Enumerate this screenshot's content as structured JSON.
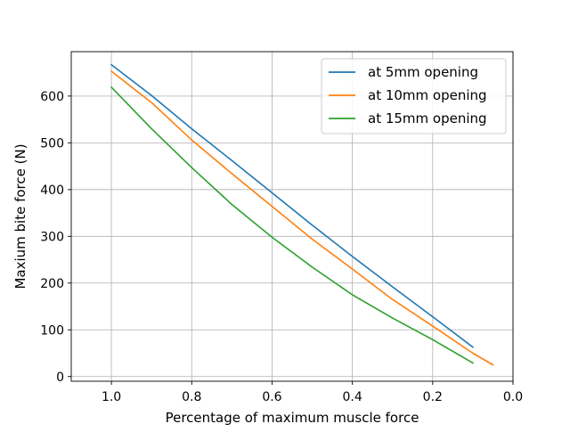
{
  "chart_data": {
    "type": "line",
    "xlabel": "Percentage of maximum muscle force",
    "ylabel": "Maxium bite force (N)",
    "xlim": [
      1.1,
      0.0
    ],
    "ylim": [
      -10,
      695
    ],
    "x_inverted": true,
    "grid": true,
    "legend_position": "top-right",
    "xticks": [
      1.0,
      0.8,
      0.6,
      0.4,
      0.2,
      0.0
    ],
    "xtick_labels": [
      "1.0",
      "0.8",
      "0.6",
      "0.4",
      "0.2",
      "0.0"
    ],
    "yticks": [
      0,
      100,
      200,
      300,
      400,
      500,
      600
    ],
    "ytick_labels": [
      "0",
      "100",
      "200",
      "300",
      "400",
      "500",
      "600"
    ],
    "series": [
      {
        "name": "at 5mm opening",
        "color": "#1f77b4",
        "x": [
          1.0,
          0.9,
          0.8,
          0.7,
          0.6,
          0.5,
          0.4,
          0.3,
          0.2,
          0.1
        ],
        "y": [
          667,
          601,
          530,
          462,
          393,
          324,
          257,
          192,
          128,
          63
        ]
      },
      {
        "name": "at 10mm opening",
        "color": "#ff7f0e",
        "x": [
          1.0,
          0.9,
          0.8,
          0.7,
          0.6,
          0.5,
          0.4,
          0.3,
          0.2,
          0.1,
          0.05
        ],
        "y": [
          653,
          586,
          506,
          434,
          364,
          294,
          230,
          165,
          108,
          50,
          25
        ]
      },
      {
        "name": "at 15mm opening",
        "color": "#2ca02c",
        "x": [
          1.0,
          0.9,
          0.8,
          0.7,
          0.6,
          0.5,
          0.4,
          0.3,
          0.2,
          0.1
        ],
        "y": [
          619,
          530,
          447,
          368,
          298,
          234,
          175,
          125,
          79,
          29
        ]
      }
    ]
  }
}
